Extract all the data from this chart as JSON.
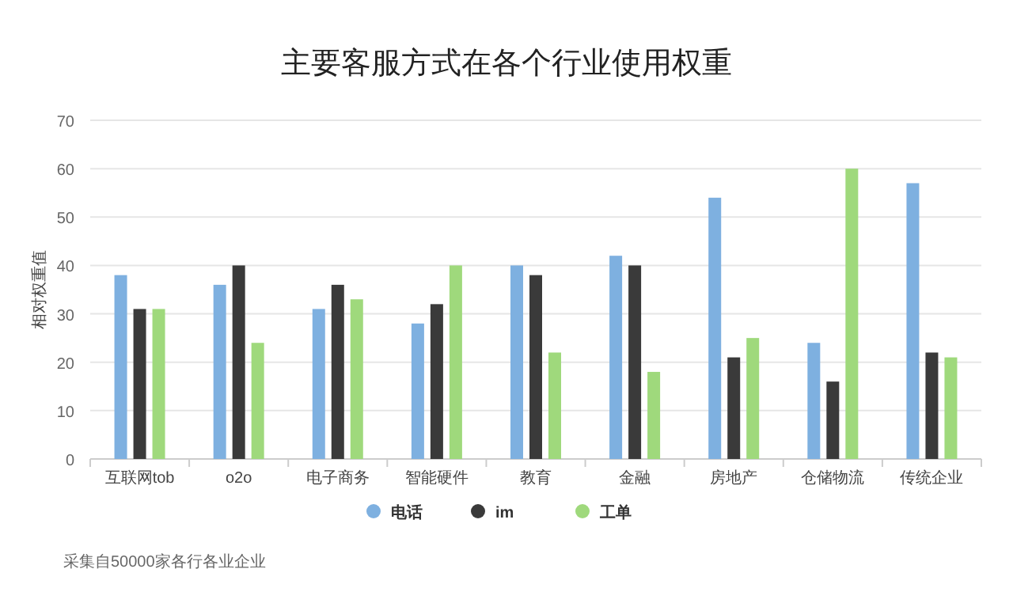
{
  "chart_data": {
    "type": "bar",
    "title": "主要客服方式在各个行业使用权重",
    "ylabel": "相对权重值",
    "categories": [
      "互联网tob",
      "o2o",
      "电子商务",
      "智能硬件",
      "教育",
      "金融",
      "房地产",
      "仓储物流",
      "传统企业"
    ],
    "series": [
      {
        "name": "电话",
        "color": "#7eb0e0",
        "values": [
          38,
          36,
          31,
          28,
          40,
          42,
          54,
          24,
          57
        ]
      },
      {
        "name": "im",
        "color": "#3a3a3a",
        "values": [
          31,
          40,
          36,
          32,
          38,
          40,
          21,
          16,
          22
        ]
      },
      {
        "name": "工单",
        "color": "#9fd97c",
        "values": [
          31,
          24,
          33,
          40,
          22,
          18,
          25,
          60,
          21
        ]
      }
    ],
    "ylim": [
      0,
      70
    ],
    "yticks": [
      0,
      10,
      20,
      30,
      40,
      50,
      60,
      70
    ],
    "grid": "y",
    "legend": "bottom",
    "annotations": [
      "采集自50000家各行各业企业"
    ]
  }
}
